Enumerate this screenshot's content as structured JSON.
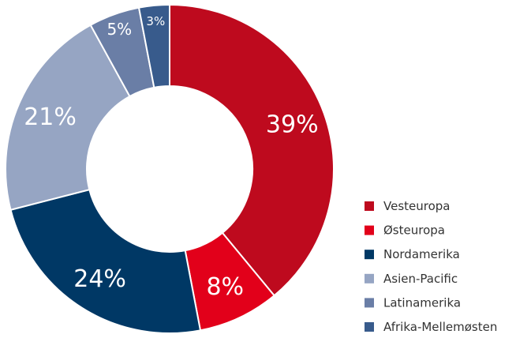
{
  "chart_data": {
    "type": "donut",
    "categories": [
      "Vesteuropa",
      "Østeuropa",
      "Nordamerika",
      "Asien-Pacific",
      "Latinamerika",
      "Afrika-Mellemøsten"
    ],
    "values": [
      39,
      8,
      24,
      21,
      5,
      3
    ],
    "value_labels": [
      "39%",
      "8%",
      "24%",
      "21%",
      "5%",
      "3%"
    ],
    "colors": [
      "#be0a1e",
      "#e2001a",
      "#003865",
      "#96a5c3",
      "#6a7ea6",
      "#385b8c"
    ]
  }
}
